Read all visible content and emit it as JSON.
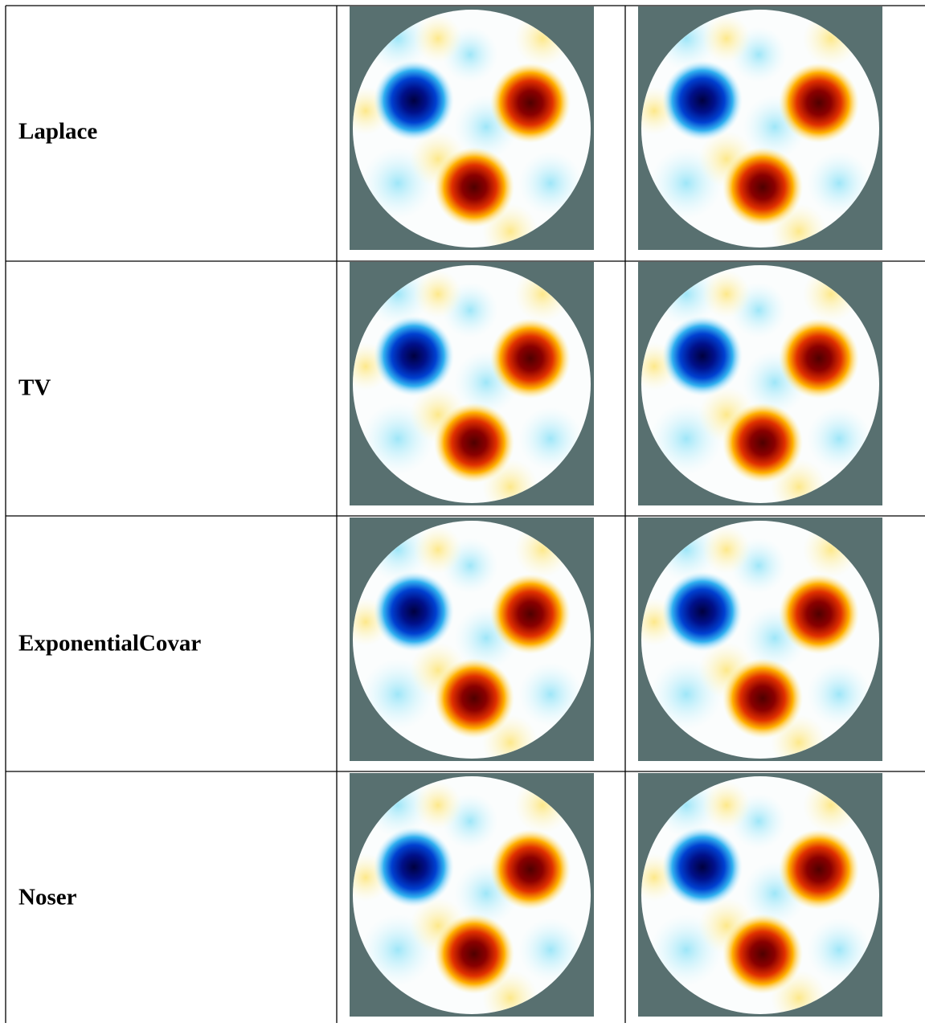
{
  "table": {
    "rows": [
      [
        "Laplace"
      ],
      [
        "TV"
      ],
      [
        "ExponentialCovar"
      ],
      [
        "Noser"
      ]
    ]
  }
}
